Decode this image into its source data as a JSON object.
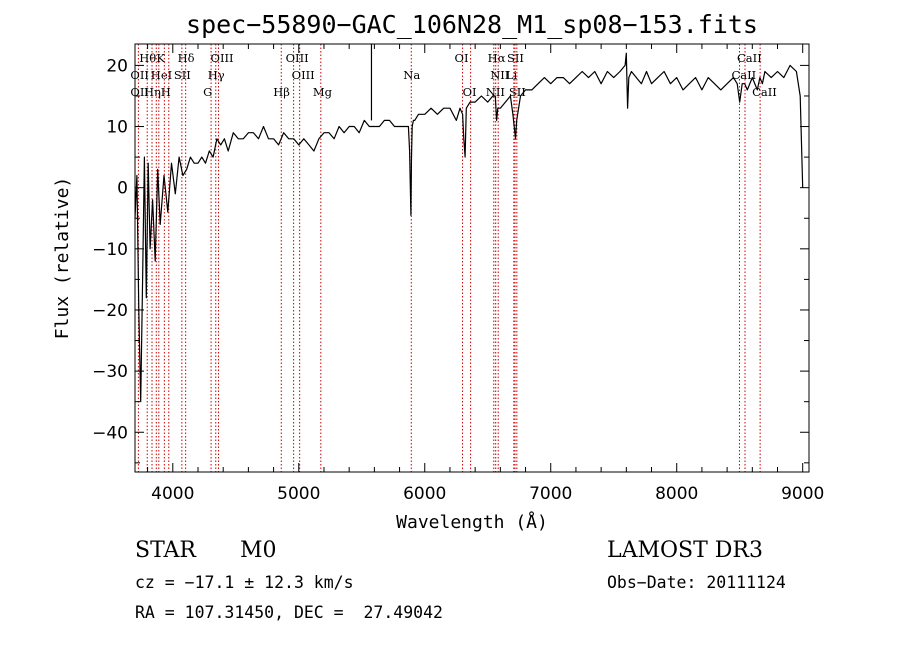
{
  "chart_data": {
    "type": "line",
    "title": "spec−55890−GAC_106N28_M1_sp08−153.fits",
    "xlabel": "Wavelength (Å)",
    "ylabel": "Flux (relative)",
    "xlim": [
      3700,
      9050
    ],
    "ylim": [
      -46.5,
      23.5
    ],
    "x_ticks": [
      4000,
      5000,
      6000,
      7000,
      8000,
      9000
    ],
    "y_ticks": [
      -40,
      -30,
      -20,
      -10,
      0,
      10,
      20
    ],
    "x_tick_labels": [
      "4000",
      "5000",
      "6000",
      "7000",
      "8000",
      "9000"
    ],
    "y_tick_labels": [
      "−40",
      "−30",
      "−20",
      "−10",
      "0",
      "10",
      "20"
    ],
    "grid": false,
    "spectrum": {
      "x": [
        3700,
        3715,
        3730,
        3745,
        3760,
        3775,
        3790,
        3805,
        3820,
        3840,
        3860,
        3880,
        3900,
        3930,
        3960,
        3990,
        4020,
        4050,
        4080,
        4110,
        4140,
        4170,
        4200,
        4230,
        4260,
        4290,
        4320,
        4350,
        4380,
        4410,
        4440,
        4480,
        4520,
        4560,
        4600,
        4640,
        4680,
        4720,
        4760,
        4800,
        4840,
        4880,
        4920,
        4960,
        5000,
        5040,
        5080,
        5120,
        5160,
        5200,
        5240,
        5280,
        5320,
        5360,
        5400,
        5440,
        5480,
        5520,
        5560,
        5600,
        5640,
        5680,
        5720,
        5760,
        5800,
        5840,
        5870,
        5880,
        5890,
        5895,
        5900,
        5910,
        5920,
        5950,
        6000,
        6050,
        6100,
        6150,
        6200,
        6250,
        6280,
        6300,
        6310,
        6320,
        6330,
        6360,
        6400,
        6450,
        6500,
        6540,
        6560,
        6570,
        6580,
        6600,
        6640,
        6680,
        6700,
        6720,
        6730,
        6760,
        6800,
        6850,
        6900,
        6950,
        7000,
        7050,
        7100,
        7150,
        7200,
        7250,
        7300,
        7350,
        7400,
        7450,
        7500,
        7550,
        7590,
        7600,
        7610,
        7620,
        7640,
        7680,
        7720,
        7760,
        7800,
        7850,
        7900,
        7950,
        8000,
        8050,
        8100,
        8150,
        8200,
        8250,
        8300,
        8350,
        8400,
        8450,
        8480,
        8500,
        8520,
        8540,
        8560,
        8600,
        8640,
        8660,
        8680,
        8700,
        8750,
        8800,
        8850,
        8900,
        8950,
        8980,
        9000
      ],
      "y": [
        -5,
        2,
        -20,
        -35,
        -15,
        5,
        -18,
        4,
        -10,
        -2,
        -12,
        3,
        -6,
        2,
        -4,
        4,
        -1,
        5,
        2,
        3,
        5,
        4,
        4,
        5,
        4,
        6,
        5,
        8,
        7,
        8,
        6,
        9,
        8,
        8,
        9,
        9,
        8,
        10,
        8,
        8,
        7,
        9,
        8,
        8,
        7,
        8,
        7,
        6,
        8,
        9,
        9,
        8,
        10,
        9,
        10,
        10,
        9,
        11,
        10,
        10,
        10,
        11,
        11,
        10,
        10,
        10,
        10,
        6,
        -4.5,
        5,
        10,
        11,
        11,
        12,
        12,
        13,
        12,
        13,
        13,
        11,
        13,
        12,
        8,
        5,
        13,
        14,
        14,
        15,
        14,
        15,
        15,
        11,
        13,
        13,
        14,
        15,
        12,
        8,
        11,
        15,
        16,
        16,
        17,
        18,
        17,
        18,
        18,
        17,
        18,
        19,
        18,
        19,
        17,
        19,
        18,
        19,
        20,
        22,
        13,
        18,
        19,
        18,
        17,
        19,
        17,
        18,
        19,
        17,
        18,
        16,
        17,
        18,
        16,
        18,
        17,
        16,
        17,
        18,
        17,
        14,
        17,
        17,
        16,
        18,
        16,
        18,
        17,
        19,
        18,
        19,
        18,
        20,
        19,
        15,
        0
      ]
    },
    "spikes": [
      {
        "x": 5577,
        "y": [
          11,
          23.5
        ]
      }
    ],
    "lines": [
      {
        "wl": 3727,
        "label": "OII"
      },
      {
        "wl": 3797,
        "label": "Hθ"
      },
      {
        "wl": 3835,
        "label": "Hη"
      },
      {
        "wl": 3869,
        "label": "NeIII"
      },
      {
        "wl": 3889,
        "label": "HeI"
      },
      {
        "wl": 3933,
        "label": "K"
      },
      {
        "wl": 3968,
        "label": "H"
      },
      {
        "wl": 4072,
        "label": "SII"
      },
      {
        "wl": 4102,
        "label": "Hδ"
      },
      {
        "wl": 4304,
        "label": "G"
      },
      {
        "wl": 4341,
        "label": "Hγ"
      },
      {
        "wl": 4363,
        "label": "OIII"
      },
      {
        "wl": 4861,
        "label": "Hβ"
      },
      {
        "wl": 4959,
        "label": "OIII"
      },
      {
        "wl": 5007,
        "label": "OIII"
      },
      {
        "wl": 5175,
        "label": "Mg"
      },
      {
        "wl": 5893,
        "label": "Na"
      },
      {
        "wl": 6300,
        "label": "OI"
      },
      {
        "wl": 6364,
        "label": "OI"
      },
      {
        "wl": 6548,
        "label": "NII"
      },
      {
        "wl": 6563,
        "label": "Hα"
      },
      {
        "wl": 6583,
        "label": "NII"
      },
      {
        "wl": 6707,
        "label": "Li"
      },
      {
        "wl": 6716,
        "label": "SII"
      },
      {
        "wl": 6731,
        "label": "SII"
      },
      {
        "wl": 8498,
        "label": "CaII"
      },
      {
        "wl": 8542,
        "label": "CaII"
      },
      {
        "wl": 8662,
        "label": "CaII"
      }
    ],
    "line_labels_shown": [
      {
        "text": "Hθ",
        "row": 0,
        "at": 3797
      },
      {
        "text": "K",
        "row": 0,
        "at": 3933
      },
      {
        "text": "Hδ",
        "row": 0,
        "at": 4102
      },
      {
        "text": "OIII",
        "row": 0,
        "at": 4363
      },
      {
        "text": "OIII",
        "row": 0,
        "at": 4959
      },
      {
        "text": "OI",
        "row": 0,
        "at": 6300
      },
      {
        "text": "Hα",
        "row": 0,
        "at": 6563
      },
      {
        "text": "SII",
        "row": 0,
        "at": 6716
      },
      {
        "text": "CaII",
        "row": 0,
        "at": 8542
      },
      {
        "text": "OII",
        "row": 1,
        "at": 3727
      },
      {
        "text": "HeI",
        "row": 1,
        "at": 3889
      },
      {
        "text": "SII",
        "row": 1,
        "at": 4072
      },
      {
        "text": "Hγ",
        "row": 1,
        "at": 4341
      },
      {
        "text": "OIII",
        "row": 1,
        "at": 5007
      },
      {
        "text": "Na",
        "row": 1,
        "at": 5893
      },
      {
        "text": "NII",
        "row": 1,
        "at": 6583
      },
      {
        "text": "Li",
        "row": 1,
        "at": 6707
      },
      {
        "text": "CaII",
        "row": 1,
        "at": 8498
      },
      {
        "text": "OII",
        "row": 2,
        "at": 3727
      },
      {
        "text": "Hη",
        "row": 2,
        "at": 3835
      },
      {
        "text": "H",
        "row": 2,
        "at": 3968
      },
      {
        "text": "G",
        "row": 2,
        "at": 4304
      },
      {
        "text": "Hβ",
        "row": 2,
        "at": 4861
      },
      {
        "text": "Mg",
        "row": 2,
        "at": 5175
      },
      {
        "text": "OI",
        "row": 2,
        "at": 6364
      },
      {
        "text": "NII",
        "row": 2,
        "at": 6548
      },
      {
        "text": "SII",
        "row": 2,
        "at": 6731
      },
      {
        "text": "CaII",
        "row": 2,
        "at": 8662
      }
    ],
    "line_color": "#000000",
    "marker_color": "#cc0000"
  },
  "info": {
    "class_label": "STAR",
    "subclass": "M0",
    "survey": "LAMOST DR3",
    "cz": "cz = −17.1 ± 12.3 km/s",
    "obs_date": "Obs−Date: 20111124",
    "radec": "RA = 107.31450, DEC =  27.49042"
  }
}
